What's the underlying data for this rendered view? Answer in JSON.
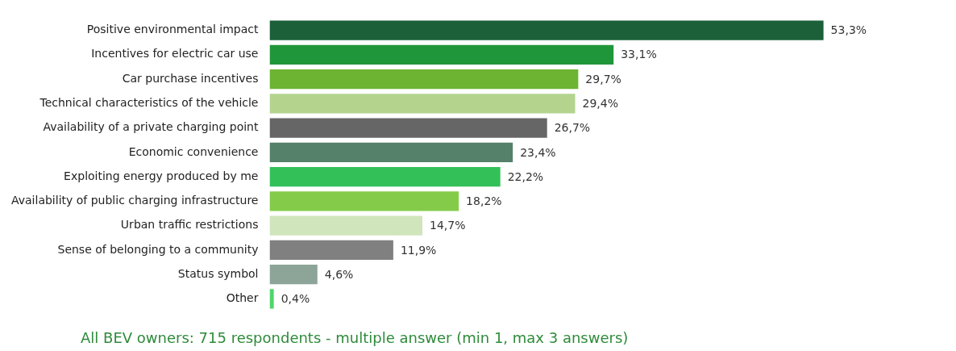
{
  "chart_data": {
    "type": "bar",
    "orientation": "horizontal",
    "categories": [
      "Positive environmental impact",
      "Incentives for electric car use",
      "Car purchase incentives",
      "Technical characteristics of the vehicle",
      "Availability of a private charging point",
      "Economic convenience",
      "Exploiting energy produced by me",
      "Availability of public charging infrastructure",
      "Urban traffic restrictions",
      "Sense of belonging to a community",
      "Status symbol",
      "Other"
    ],
    "values": [
      53.3,
      33.1,
      29.7,
      29.4,
      26.7,
      23.4,
      22.2,
      18.2,
      14.7,
      11.9,
      4.6,
      0.4
    ],
    "colors": [
      "#1b6039",
      "#20963a",
      "#6cb432",
      "#b4d48e",
      "#666666",
      "#558069",
      "#33c058",
      "#84cb4a",
      "#d0e5bb",
      "#808080",
      "#8ca598",
      "#4ed66a"
    ],
    "value_labels": [
      "53,3%",
      "33,1%",
      "29,7%",
      "29,4%",
      "26,7%",
      "23,4%",
      "22,2%",
      "18,2%",
      "14,7%",
      "11,9%",
      "4,6%",
      "0,4%"
    ],
    "annotations": [
      "All BEV owners: 715 respondents - multiple answer (min 1, max 3 answers)"
    ]
  }
}
